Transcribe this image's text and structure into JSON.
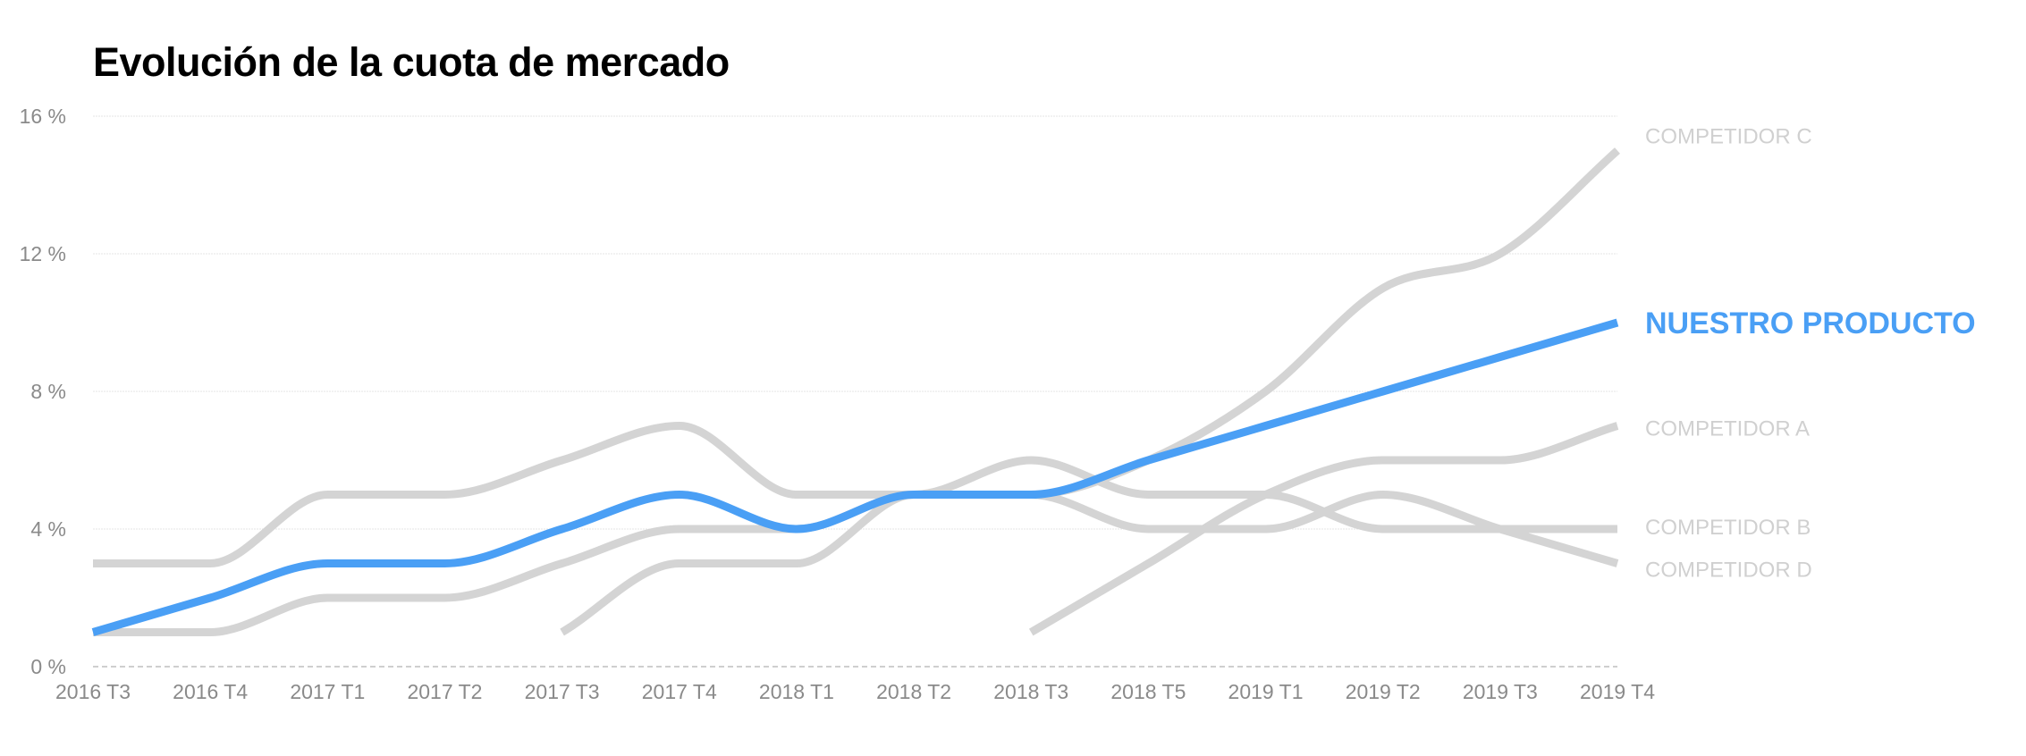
{
  "chart_data": {
    "type": "line",
    "title": "Evolución de la cuota de mercado",
    "xlabel": "",
    "ylabel": "",
    "categories": [
      "2016 T3",
      "2016 T4",
      "2017 T1",
      "2017 T2",
      "2017 T3",
      "2017 T4",
      "2018 T1",
      "2018 T2",
      "2018 T3",
      "2018 T5",
      "2019 T1",
      "2019 T2",
      "2019 T3",
      "2019 T4"
    ],
    "ylim": [
      0,
      16
    ],
    "yticks": [
      0,
      4,
      8,
      12,
      16
    ],
    "ytick_labels": [
      "0 %",
      "4 %",
      "8 %",
      "12 %",
      "16 %"
    ],
    "grid": true,
    "legend": "direct labels at line ends (right)",
    "series": [
      {
        "name": "COMPETIDOR C",
        "color": "#d4d4d4",
        "values": [
          null,
          null,
          null,
          null,
          1,
          3,
          3,
          5,
          5,
          6,
          8,
          11,
          12,
          15
        ]
      },
      {
        "name": "COMPETIDOR A",
        "color": "#d4d4d4",
        "values": [
          null,
          null,
          null,
          null,
          null,
          null,
          null,
          null,
          1,
          3,
          5,
          6,
          6,
          7
        ]
      },
      {
        "name": "COMPETIDOR B",
        "color": "#d4d4d4",
        "values": [
          3,
          3,
          5,
          5,
          6,
          7,
          5,
          5,
          6,
          5,
          5,
          4,
          4,
          4
        ]
      },
      {
        "name": "COMPETIDOR D",
        "color": "#d4d4d4",
        "values": [
          1,
          1,
          2,
          2,
          3,
          4,
          4,
          5,
          5,
          4,
          4,
          5,
          4,
          3
        ]
      },
      {
        "name": "NUESTRO PRODUCTO",
        "color": "#4a9ff5",
        "highlight": true,
        "values": [
          1,
          2,
          3,
          3,
          4,
          5,
          4,
          5,
          5,
          6,
          7,
          8,
          9,
          10
        ]
      }
    ]
  }
}
